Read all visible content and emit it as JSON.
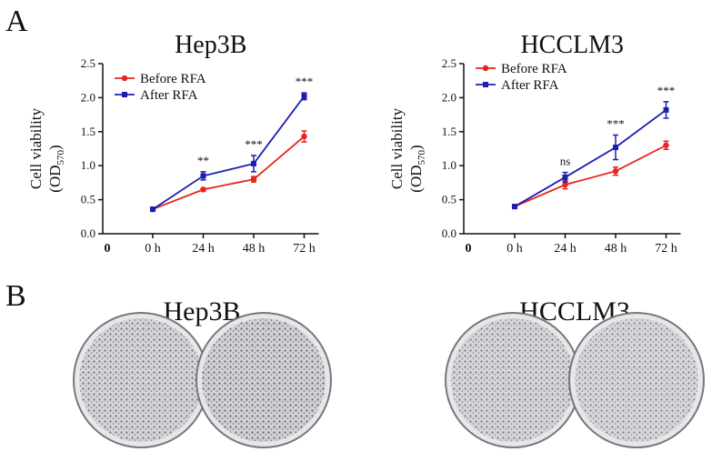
{
  "panels": {
    "a": "A",
    "b": "B"
  },
  "photos": {
    "titles": [
      "Hep3B",
      "HCCLM3"
    ]
  },
  "chart_data": [
    {
      "type": "line",
      "title": "Hep3B",
      "ylabel": [
        "Cell viability",
        "(OD",
        "570",
        ")"
      ],
      "x_origin_label": "0",
      "categories": [
        "0 h",
        "24 h",
        "48 h",
        "72 h"
      ],
      "ylim": [
        0,
        2.5
      ],
      "yticks": [
        {
          "value": 0,
          "label": "0.0"
        },
        0.5,
        {
          "value": 1,
          "label": "1.0"
        },
        1.5,
        {
          "value": 2,
          "label": "2.0"
        },
        2.5
      ],
      "series": [
        {
          "name": "Before RFA",
          "color": "#e8231f",
          "marker": "circle",
          "values": [
            0.36,
            0.65,
            0.8,
            1.43
          ],
          "errors": [
            0.02,
            0.02,
            0.04,
            0.08
          ]
        },
        {
          "name": "After RFA",
          "color": "#1b1fb0",
          "marker": "square",
          "values": [
            0.36,
            0.85,
            1.03,
            2.02
          ],
          "errors": [
            0.02,
            0.06,
            0.12,
            0.05
          ]
        }
      ],
      "annotations": [
        null,
        "**",
        "***",
        "***"
      ]
    },
    {
      "type": "line",
      "title": "HCCLM3",
      "ylabel": [
        "Cell viability",
        "(OD",
        "570",
        ")"
      ],
      "x_origin_label": "0",
      "categories": [
        "0 h",
        "24 h",
        "48 h",
        "72 h"
      ],
      "ylim": [
        0,
        2.5
      ],
      "yticks": [
        {
          "value": 0,
          "label": "0.0"
        },
        0.5,
        {
          "value": 1,
          "label": "1.0"
        },
        1.5,
        {
          "value": 2,
          "label": "2.0"
        },
        2.5
      ],
      "series": [
        {
          "name": "Before RFA",
          "color": "#e8231f",
          "marker": "circle",
          "values": [
            0.4,
            0.72,
            0.92,
            1.3
          ],
          "errors": [
            0.02,
            0.06,
            0.06,
            0.06
          ]
        },
        {
          "name": "After RFA",
          "color": "#1b1fb0",
          "marker": "square",
          "values": [
            0.4,
            0.83,
            1.27,
            1.82
          ],
          "errors": [
            0.02,
            0.07,
            0.18,
            0.12
          ]
        }
      ],
      "annotations": [
        null,
        "ns",
        "***",
        "***"
      ]
    }
  ]
}
